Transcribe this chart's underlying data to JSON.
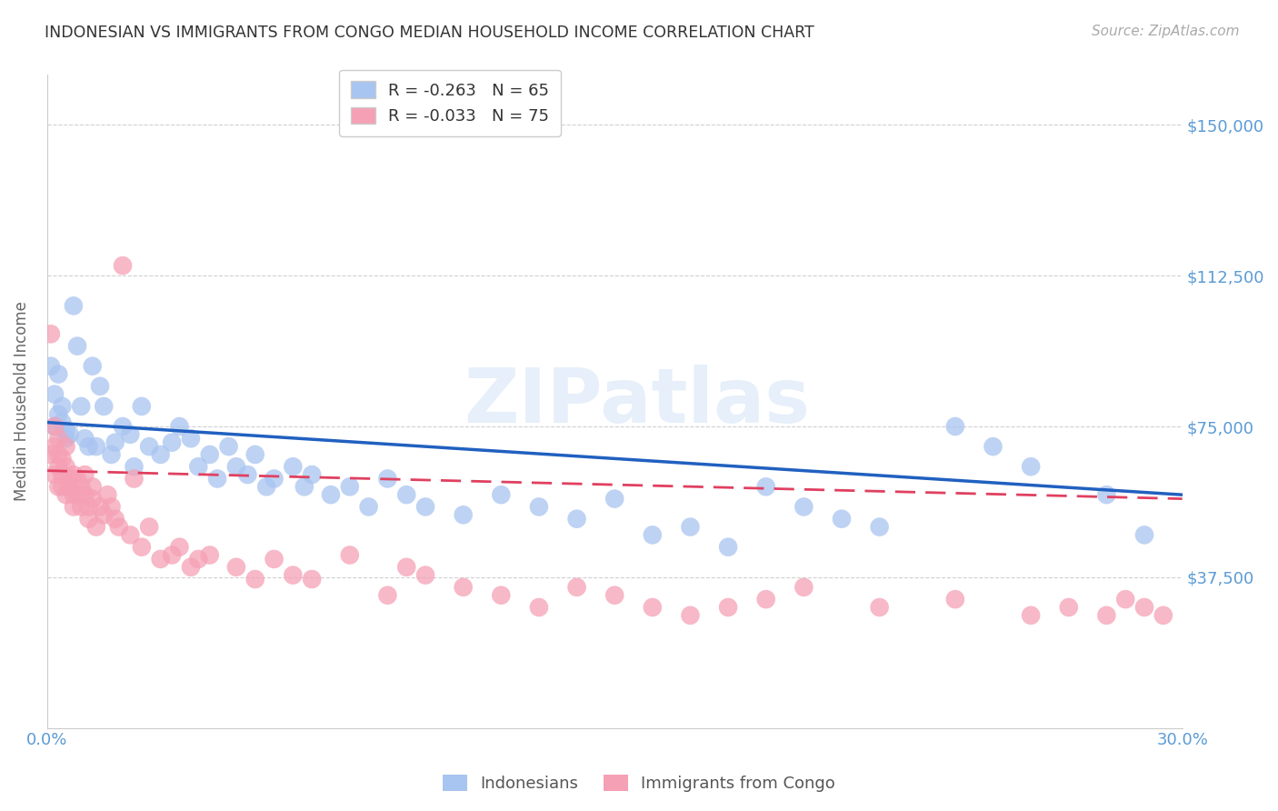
{
  "title": "INDONESIAN VS IMMIGRANTS FROM CONGO MEDIAN HOUSEHOLD INCOME CORRELATION CHART",
  "source": "Source: ZipAtlas.com",
  "ylabel": "Median Household Income",
  "yticks": [
    0,
    37500,
    75000,
    112500,
    150000
  ],
  "xlim": [
    0.0,
    0.3
  ],
  "ylim": [
    0,
    162500
  ],
  "legend_entry1_label": "R = -0.263   N = 65",
  "legend_entry2_label": "R = -0.033   N = 75",
  "legend_label1": "Indonesians",
  "legend_label2": "Immigrants from Congo",
  "watermark": "ZIPatlas",
  "bg_color": "#ffffff",
  "grid_color": "#d0d0d0",
  "title_color": "#333333",
  "right_label_color": "#5b9bd5",
  "indonesian_color": "#a8c4f0",
  "congo_color": "#f5a0b5",
  "indonesian_line_color": "#2060c0",
  "congo_line_color": "#e04060",
  "indonesian_points_x": [
    0.001,
    0.002,
    0.002,
    0.003,
    0.003,
    0.004,
    0.004,
    0.005,
    0.005,
    0.006,
    0.007,
    0.008,
    0.009,
    0.01,
    0.011,
    0.012,
    0.013,
    0.014,
    0.015,
    0.017,
    0.018,
    0.02,
    0.022,
    0.023,
    0.025,
    0.027,
    0.03,
    0.033,
    0.035,
    0.038,
    0.04,
    0.043,
    0.045,
    0.048,
    0.05,
    0.053,
    0.055,
    0.058,
    0.06,
    0.065,
    0.068,
    0.07,
    0.075,
    0.08,
    0.085,
    0.09,
    0.095,
    0.1,
    0.11,
    0.12,
    0.13,
    0.14,
    0.15,
    0.16,
    0.17,
    0.18,
    0.19,
    0.2,
    0.21,
    0.22,
    0.24,
    0.25,
    0.26,
    0.28,
    0.29
  ],
  "indonesian_points_y": [
    90000,
    83000,
    75000,
    88000,
    78000,
    76000,
    80000,
    74000,
    72000,
    73000,
    105000,
    95000,
    80000,
    72000,
    70000,
    90000,
    70000,
    85000,
    80000,
    68000,
    71000,
    75000,
    73000,
    65000,
    80000,
    70000,
    68000,
    71000,
    75000,
    72000,
    65000,
    68000,
    62000,
    70000,
    65000,
    63000,
    68000,
    60000,
    62000,
    65000,
    60000,
    63000,
    58000,
    60000,
    55000,
    62000,
    58000,
    55000,
    53000,
    58000,
    55000,
    52000,
    57000,
    48000,
    50000,
    45000,
    60000,
    55000,
    52000,
    50000,
    75000,
    70000,
    65000,
    58000,
    48000
  ],
  "congo_points_x": [
    0.001,
    0.001,
    0.002,
    0.002,
    0.002,
    0.003,
    0.003,
    0.003,
    0.003,
    0.004,
    0.004,
    0.004,
    0.005,
    0.005,
    0.005,
    0.006,
    0.006,
    0.007,
    0.007,
    0.007,
    0.008,
    0.008,
    0.009,
    0.009,
    0.01,
    0.01,
    0.011,
    0.011,
    0.012,
    0.012,
    0.013,
    0.014,
    0.015,
    0.016,
    0.017,
    0.018,
    0.019,
    0.02,
    0.022,
    0.023,
    0.025,
    0.027,
    0.03,
    0.033,
    0.035,
    0.038,
    0.04,
    0.043,
    0.05,
    0.055,
    0.06,
    0.065,
    0.07,
    0.08,
    0.09,
    0.095,
    0.1,
    0.11,
    0.12,
    0.13,
    0.14,
    0.15,
    0.16,
    0.17,
    0.18,
    0.19,
    0.2,
    0.22,
    0.24,
    0.26,
    0.27,
    0.28,
    0.285,
    0.29,
    0.295
  ],
  "congo_points_y": [
    98000,
    68000,
    75000,
    70000,
    63000,
    68000,
    65000,
    72000,
    60000,
    67000,
    63000,
    60000,
    70000,
    65000,
    58000,
    62000,
    60000,
    63000,
    58000,
    55000,
    62000,
    58000,
    60000,
    55000,
    63000,
    58000,
    55000,
    52000,
    57000,
    60000,
    50000,
    55000,
    53000,
    58000,
    55000,
    52000,
    50000,
    115000,
    48000,
    62000,
    45000,
    50000,
    42000,
    43000,
    45000,
    40000,
    42000,
    43000,
    40000,
    37000,
    42000,
    38000,
    37000,
    43000,
    33000,
    40000,
    38000,
    35000,
    33000,
    30000,
    35000,
    33000,
    30000,
    28000,
    30000,
    32000,
    35000,
    30000,
    32000,
    28000,
    30000,
    28000,
    32000,
    30000,
    28000
  ]
}
